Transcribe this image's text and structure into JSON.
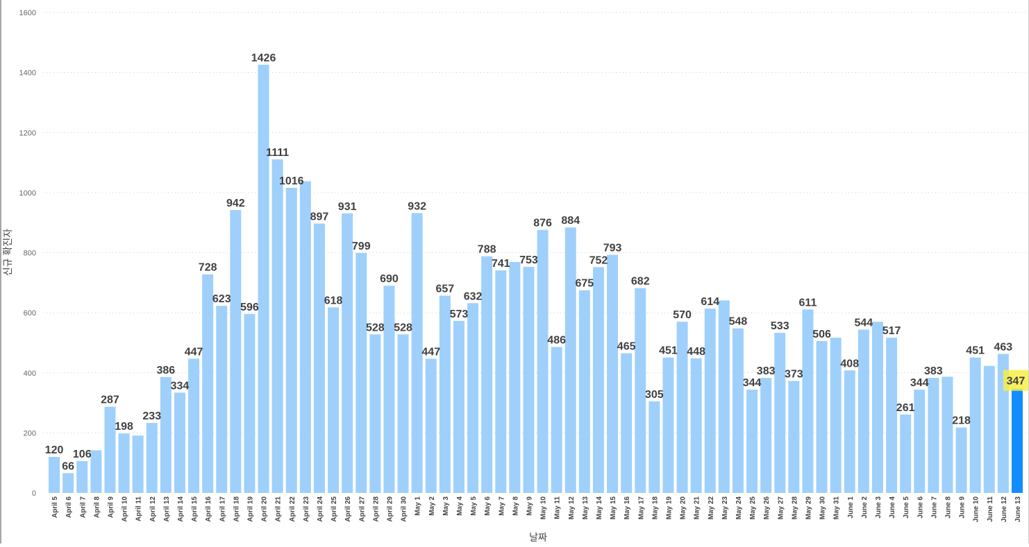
{
  "chart_data": {
    "type": "bar",
    "xlabel": "날짜",
    "ylabel": "신규 확진자",
    "ylim": [
      0,
      1600
    ],
    "yticks": [
      0,
      200,
      400,
      600,
      800,
      1000,
      1200,
      1400,
      1600
    ],
    "grid": true,
    "legend": "none",
    "categories": [
      "April 5",
      "April 6",
      "April 7",
      "April 8",
      "April 9",
      "April 10",
      "April 11",
      "April 12",
      "April 13",
      "April 14",
      "April 15",
      "April 16",
      "April 17",
      "April 18",
      "April 19",
      "April 20",
      "April 21",
      "April 22",
      "April 23",
      "April 24",
      "April 25",
      "April 26",
      "April 27",
      "April 28",
      "April 29",
      "April 30",
      "May 1",
      "May 2",
      "May 3",
      "May 4",
      "May 5",
      "May 6",
      "May 7",
      "May 8",
      "May 9",
      "May 10",
      "May 11",
      "May 12",
      "May 13",
      "May 14",
      "May 15",
      "May 16",
      "May 17",
      "May 18",
      "May 19",
      "May 20",
      "May 21",
      "May 22",
      "May 23",
      "May 24",
      "May 25",
      "May 26",
      "May 27",
      "May 28",
      "May 29",
      "May 30",
      "May 31",
      "June 1",
      "June 2",
      "June 3",
      "June 4",
      "June 5",
      "June 6",
      "June 7",
      "June 8",
      "June 9",
      "June 10",
      "June 11",
      "June 12",
      "June 13"
    ],
    "values": [
      120,
      66,
      106,
      142,
      287,
      198,
      191,
      233,
      386,
      334,
      447,
      728,
      623,
      942,
      596,
      1426,
      1111,
      1016,
      1038,
      897,
      618,
      931,
      799,
      528,
      690,
      528,
      932,
      447,
      657,
      573,
      632,
      788,
      741,
      769,
      753,
      876,
      486,
      884,
      675,
      752,
      793,
      465,
      682,
      305,
      451,
      570,
      448,
      614,
      641,
      548,
      344,
      383,
      533,
      373,
      611,
      506,
      517,
      408,
      544,
      570,
      517,
      261,
      344,
      383,
      387,
      218,
      451,
      423,
      463,
      347
    ],
    "data_labels": [
      "120",
      "66",
      "106",
      "",
      "287",
      "198",
      "",
      "233",
      "386",
      "334",
      "447",
      "728",
      "623",
      "942",
      "596",
      "1426",
      "1111",
      "1016",
      "",
      "897",
      "618",
      "931",
      "799",
      "528",
      "690",
      "528",
      "932",
      "447",
      "657",
      "573",
      "632",
      "788",
      "741",
      "",
      "753",
      "876",
      "486",
      "884",
      "675",
      "752",
      "793",
      "465",
      "682",
      "305",
      "451",
      "570",
      "448",
      "614",
      "",
      "548",
      "344",
      "383",
      "533",
      "373",
      "611",
      "506",
      "",
      "408",
      "544",
      "",
      "517",
      "261",
      "344",
      "383",
      "",
      "218",
      "451",
      "",
      "463",
      "347"
    ],
    "highlight_index": 69,
    "colors": {
      "bar": "#9fd0fb",
      "highlight_bar": "#118dff",
      "highlight_label_bg": "#f6ee48",
      "label_text": "#404040",
      "gridline": "#cccccc"
    }
  }
}
